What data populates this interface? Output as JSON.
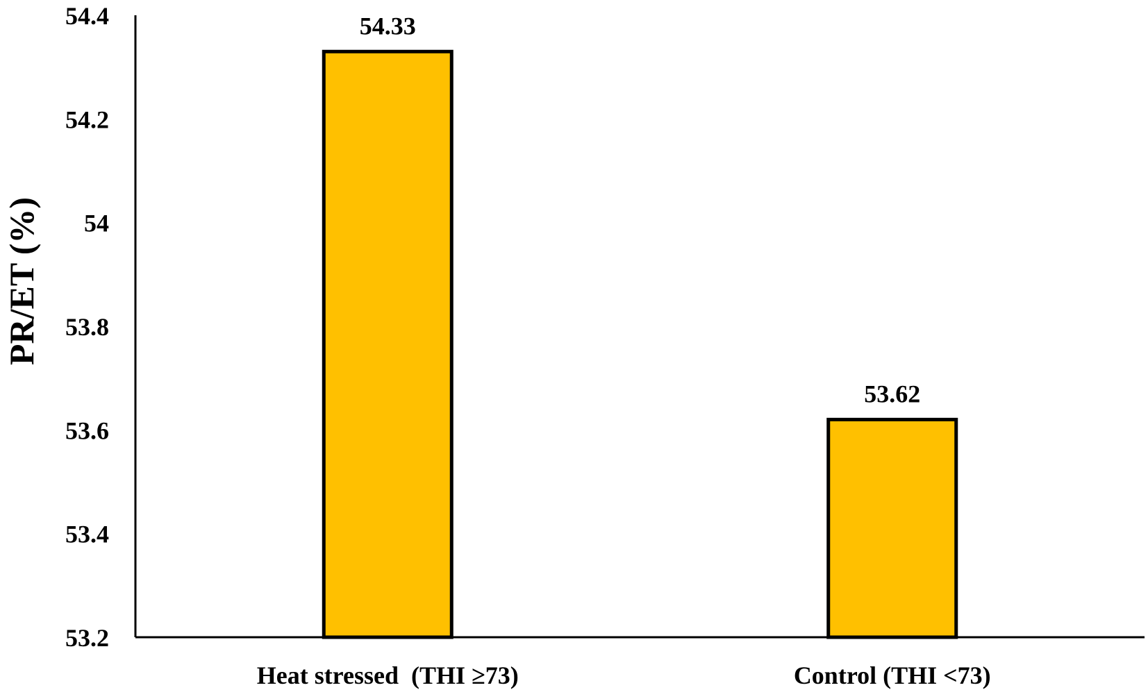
{
  "chart_data": {
    "type": "bar",
    "title": "",
    "xlabel": "",
    "ylabel": "PR/ET (%)",
    "categories": [
      "Heat stressed  (THI ≥73)",
      "Control (THI <73)"
    ],
    "values": [
      54.33,
      53.62
    ],
    "data_labels": [
      "54.33",
      "53.62"
    ],
    "ylim": [
      53.2,
      54.4
    ],
    "yticks": [
      53.2,
      53.4,
      53.6,
      53.8,
      54.0,
      54.2,
      54.4
    ],
    "ytick_labels": [
      "53.2",
      "53.4",
      "53.6",
      "53.8",
      "54",
      "54.2",
      "54.4"
    ],
    "grid": false,
    "legend": "none",
    "bar_color": "#FFC000",
    "bar_edge_color": "#000000"
  }
}
